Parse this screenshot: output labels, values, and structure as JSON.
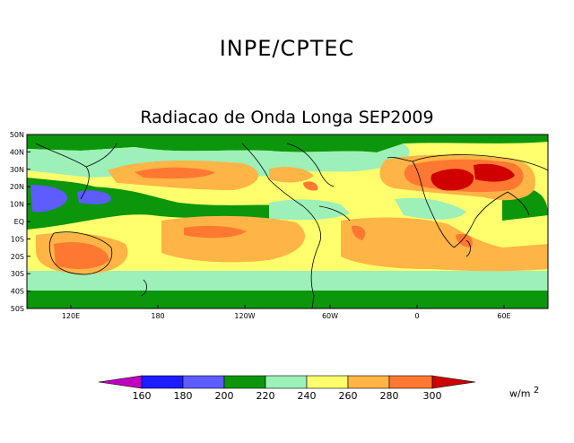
{
  "header": {
    "title": "INPE/CPTEC"
  },
  "map": {
    "title": "Radiacao de Onda Longa SEP2009",
    "lat_labels": [
      "50N",
      "40N",
      "30N",
      "20N",
      "10N",
      "EQ",
      "10S",
      "20S",
      "30S",
      "40S",
      "50S"
    ],
    "lon_labels": [
      "120E",
      "180",
      "120W",
      "60W",
      "0",
      "60E"
    ],
    "colors": {
      "c140": "#c000c0",
      "c160": "#1c1cff",
      "c180": "#5c5cff",
      "c200": "#0c960c",
      "c220": "#9cf0b8",
      "c240": "#ffff6e",
      "c260": "#ffb446",
      "c280": "#ff7832",
      "c300": "#d00000"
    }
  },
  "colorbar": {
    "labels": [
      "160",
      "180",
      "200",
      "220",
      "240",
      "260",
      "280",
      "300"
    ],
    "colors": [
      "#c000c0",
      "#1c1cff",
      "#5c5cff",
      "#0c960c",
      "#9cf0b8",
      "#ffff6e",
      "#ffb446",
      "#ff7832",
      "#d00000"
    ]
  },
  "units": {
    "base": "w/m",
    "exp": "2"
  }
}
